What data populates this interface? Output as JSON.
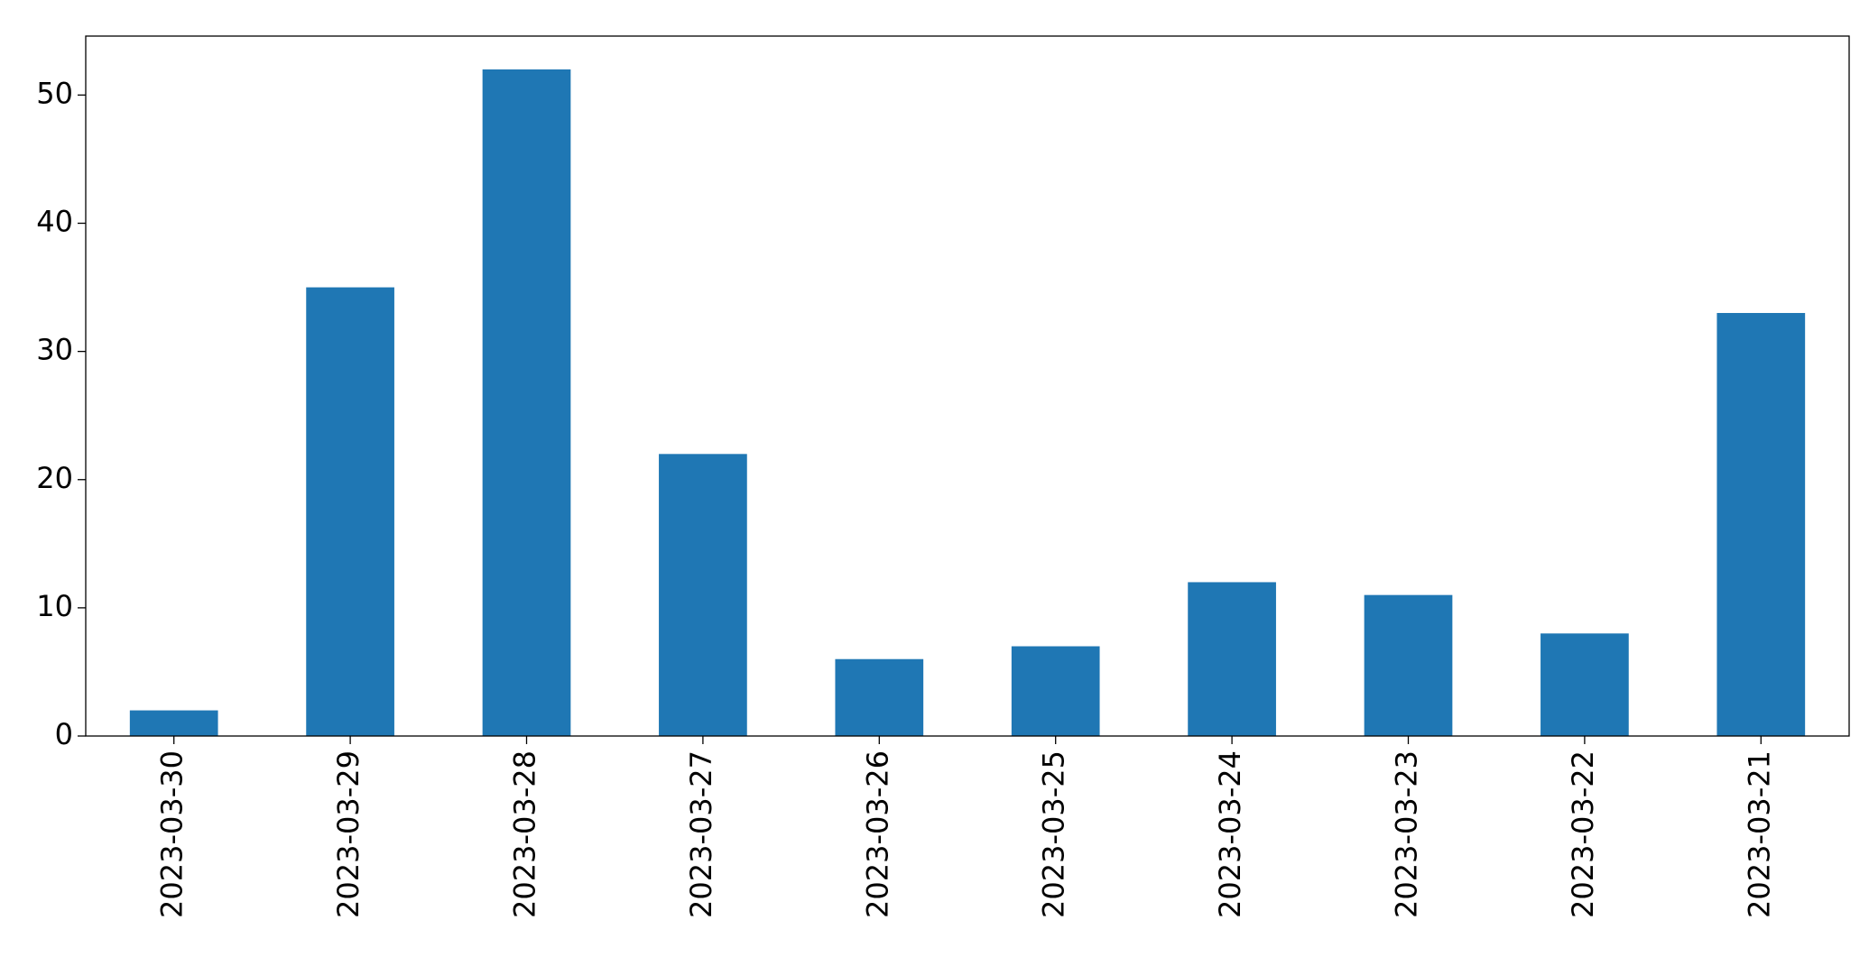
{
  "chart_data": {
    "type": "bar",
    "categories": [
      "2023-03-30",
      "2023-03-29",
      "2023-03-28",
      "2023-03-27",
      "2023-03-26",
      "2023-03-25",
      "2023-03-24",
      "2023-03-23",
      "2023-03-22",
      "2023-03-21"
    ],
    "values": [
      2,
      35,
      52,
      22,
      6,
      7,
      12,
      11,
      8,
      33
    ],
    "color": "#1f77b4",
    "ylim": [
      0,
      54.6
    ],
    "yticks": [
      0,
      10,
      20,
      30,
      40,
      50
    ],
    "grid": false
  }
}
